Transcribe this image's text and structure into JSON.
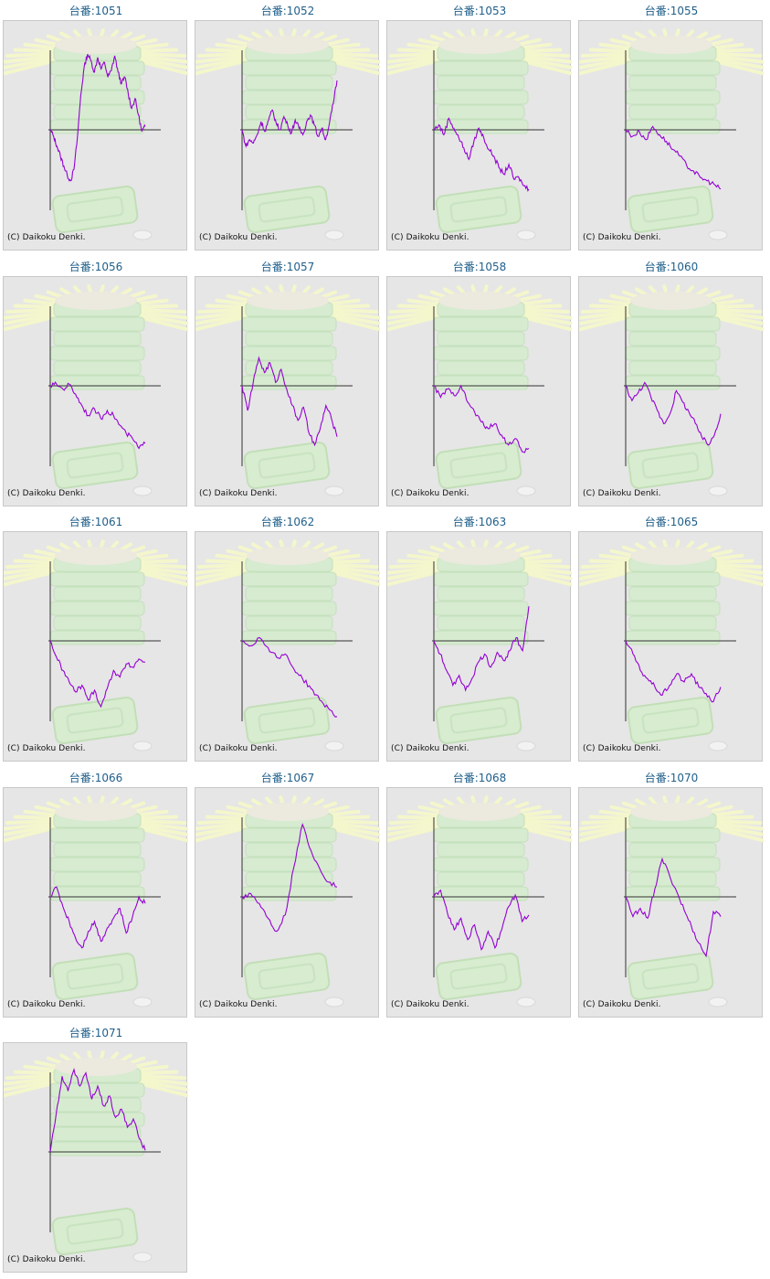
{
  "copyright": "(C) Daikoku Denki.",
  "colors": {
    "line": "#9400d3",
    "axis": "#333333",
    "title": "#1f5f8a",
    "panel": "#e6e6e6"
  },
  "chart_data": [
    {
      "type": "line",
      "title": "台番:1051",
      "values": [
        0,
        -0.08,
        -0.2,
        -0.32,
        -0.44,
        -0.55,
        -0.62,
        -0.48,
        -0.1,
        0.42,
        0.76,
        0.92,
        0.84,
        0.7,
        0.88,
        0.74,
        0.82,
        0.64,
        0.72,
        0.9,
        0.7,
        0.56,
        0.64,
        0.44,
        0.26,
        0.38,
        0.18,
        -0.02,
        0.04
      ]
    },
    {
      "type": "line",
      "title": "台番:1052",
      "values": [
        0,
        -0.2,
        -0.12,
        -0.16,
        -0.06,
        0.1,
        -0.02,
        0.12,
        0.24,
        0.08,
        0.0,
        0.16,
        0.06,
        -0.04,
        0.12,
        0.02,
        -0.06,
        0.1,
        0.18,
        0.06,
        -0.08,
        0.02,
        -0.12,
        0.08,
        0.32,
        0.6
      ]
    },
    {
      "type": "line",
      "title": "台番:1053",
      "values": [
        0,
        0.06,
        -0.06,
        0.14,
        0.02,
        -0.1,
        -0.22,
        -0.36,
        -0.14,
        0.02,
        -0.1,
        -0.24,
        -0.32,
        -0.46,
        -0.54,
        -0.42,
        -0.6,
        -0.58,
        -0.68,
        -0.72
      ]
    },
    {
      "type": "line",
      "title": "台番:1055",
      "values": [
        0,
        -0.08,
        -0.02,
        -0.12,
        0.04,
        -0.06,
        -0.14,
        -0.24,
        -0.32,
        -0.44,
        -0.5,
        -0.58,
        -0.62,
        -0.66,
        -0.72
      ]
    },
    {
      "type": "line",
      "title": "台番:1056",
      "values": [
        0,
        0.02,
        -0.04,
        0.02,
        -0.1,
        -0.24,
        -0.36,
        -0.28,
        -0.4,
        -0.3,
        -0.36,
        -0.48,
        -0.58,
        -0.64,
        -0.76,
        -0.7
      ]
    },
    {
      "type": "line",
      "title": "台番:1057",
      "values": [
        0,
        -0.3,
        0.04,
        0.34,
        0.16,
        0.28,
        0.04,
        0.2,
        -0.04,
        -0.24,
        -0.42,
        -0.26,
        -0.58,
        -0.72,
        -0.52,
        -0.24,
        -0.4,
        -0.62
      ]
    },
    {
      "type": "line",
      "title": "台番:1058",
      "values": [
        0,
        -0.14,
        -0.04,
        -0.12,
        0.0,
        -0.2,
        -0.32,
        -0.44,
        -0.52,
        -0.46,
        -0.6,
        -0.72,
        -0.64,
        -0.8,
        -0.76
      ]
    },
    {
      "type": "line",
      "title": "台番:1060",
      "values": [
        0,
        -0.18,
        -0.08,
        0.04,
        -0.14,
        -0.3,
        -0.46,
        -0.34,
        -0.06,
        -0.2,
        -0.32,
        -0.46,
        -0.62,
        -0.72,
        -0.6,
        -0.34
      ]
    },
    {
      "type": "line",
      "title": "台番:1061",
      "values": [
        0,
        -0.2,
        -0.36,
        -0.5,
        -0.62,
        -0.54,
        -0.72,
        -0.6,
        -0.8,
        -0.58,
        -0.36,
        -0.44,
        -0.28,
        -0.32,
        -0.22,
        -0.26
      ]
    },
    {
      "type": "line",
      "title": "台番:1062",
      "values": [
        0,
        -0.06,
        0.04,
        -0.08,
        -0.2,
        -0.16,
        -0.34,
        -0.46,
        -0.58,
        -0.72,
        -0.82,
        -0.92
      ]
    },
    {
      "type": "line",
      "title": "台番:1063",
      "values": [
        0,
        -0.16,
        -0.36,
        -0.54,
        -0.42,
        -0.6,
        -0.46,
        -0.26,
        -0.16,
        -0.32,
        -0.14,
        -0.24,
        -0.12,
        0.04,
        -0.12,
        0.42
      ]
    },
    {
      "type": "line",
      "title": "台番:1065",
      "values": [
        0,
        -0.16,
        -0.36,
        -0.46,
        -0.56,
        -0.66,
        -0.54,
        -0.4,
        -0.5,
        -0.4,
        -0.56,
        -0.64,
        -0.74,
        -0.56
      ]
    },
    {
      "type": "line",
      "title": "台番:1066",
      "values": [
        0,
        0.12,
        -0.12,
        -0.3,
        -0.5,
        -0.62,
        -0.42,
        -0.3,
        -0.54,
        -0.38,
        -0.26,
        -0.14,
        -0.44,
        -0.24,
        0.0,
        -0.08
      ]
    },
    {
      "type": "line",
      "title": "台番:1067",
      "values": [
        0,
        0.04,
        -0.08,
        -0.26,
        -0.42,
        -0.22,
        0.36,
        0.88,
        0.56,
        0.34,
        0.18,
        0.12
      ]
    },
    {
      "type": "line",
      "title": "台番:1068",
      "values": [
        0,
        0.08,
        -0.2,
        -0.4,
        -0.26,
        -0.52,
        -0.34,
        -0.64,
        -0.42,
        -0.62,
        -0.4,
        -0.12,
        0.02,
        -0.3,
        -0.22
      ]
    },
    {
      "type": "line",
      "title": "台番:1070",
      "values": [
        0,
        -0.24,
        -0.14,
        -0.26,
        0.1,
        0.46,
        0.26,
        0.06,
        -0.16,
        -0.36,
        -0.56,
        -0.72,
        -0.18,
        -0.24
      ]
    },
    {
      "type": "line",
      "title": "台番:1071",
      "values": [
        0,
        0.46,
        0.92,
        0.74,
        1.0,
        0.8,
        0.96,
        0.64,
        0.8,
        0.56,
        0.68,
        0.42,
        0.52,
        0.3,
        0.4,
        0.16,
        0.02
      ]
    }
  ]
}
